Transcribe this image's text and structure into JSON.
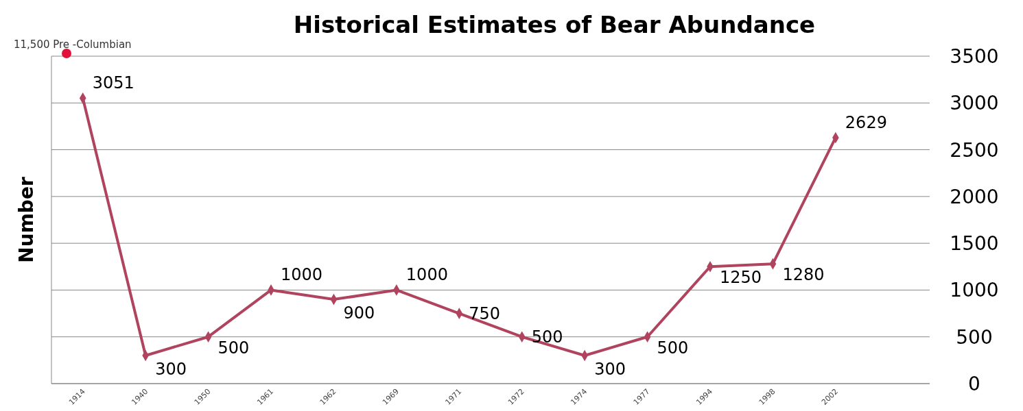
{
  "chart_data": {
    "type": "line",
    "title": "Historical Estimates of Bear Abundance",
    "ylabel": "Number",
    "categories": [
      "1914",
      "1940",
      "1950",
      "1961",
      "1962",
      "1969",
      "1971",
      "1972",
      "1974",
      "1977",
      "1994",
      "1998",
      "2002"
    ],
    "series": [
      {
        "color": "#b0435e",
        "values": [
          3051,
          300,
          500,
          1000,
          900,
          1000,
          750,
          500,
          300,
          500,
          1250,
          1280,
          2629
        ]
      }
    ],
    "ylim": [
      0,
      3500
    ],
    "yticks": [
      0,
      500,
      1000,
      1500,
      2000,
      2500,
      3000,
      3500
    ],
    "grid": "y",
    "marker": "diamond",
    "data_labels": true,
    "annotations": [
      "11,500 Pre -Columbian"
    ]
  }
}
